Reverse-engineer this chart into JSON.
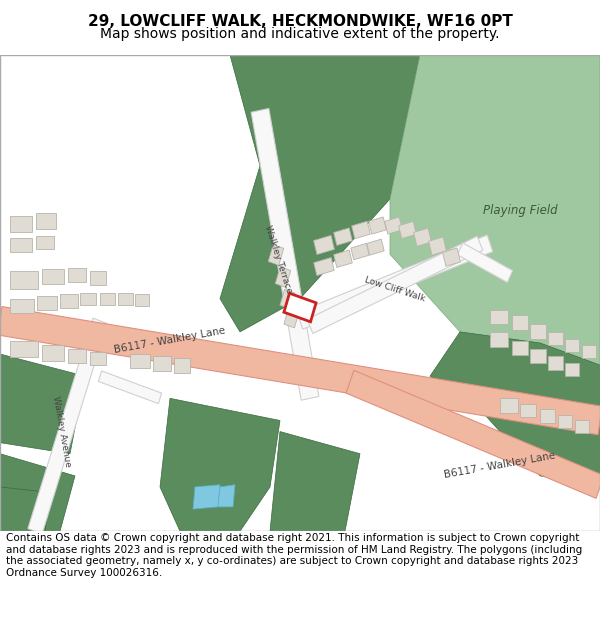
{
  "title_line1": "29, LOWCLIFF WALK, HECKMONDWIKE, WF16 0PT",
  "title_line2": "Map shows position and indicative extent of the property.",
  "footer_text": "Contains OS data © Crown copyright and database right 2021. This information is subject to Crown copyright and database rights 2023 and is reproduced with the permission of HM Land Registry. The polygons (including the associated geometry, namely x, y co-ordinates) are subject to Crown copyright and database rights 2023 Ordnance Survey 100026316.",
  "title_fontsize": 11,
  "subtitle_fontsize": 10,
  "footer_fontsize": 7.5,
  "bg_color": "#ffffff",
  "map_bg": "#f5f3f0",
  "green_dark": "#5a8c5e",
  "green_light": "#a0c8a0",
  "road_salmon": "#f0b8a0",
  "road_salmon_edge": "#e09080",
  "road_white": "#f8f8f8",
  "road_white_edge": "#d0d0d0",
  "building_fill": "#e0dcd4",
  "building_outline": "#b8b4ac",
  "highlight_fill": "#ffffff",
  "highlight_outline": "#cc2222",
  "water_blue": "#80c8e0",
  "green_stripe": "#4a7a4e"
}
